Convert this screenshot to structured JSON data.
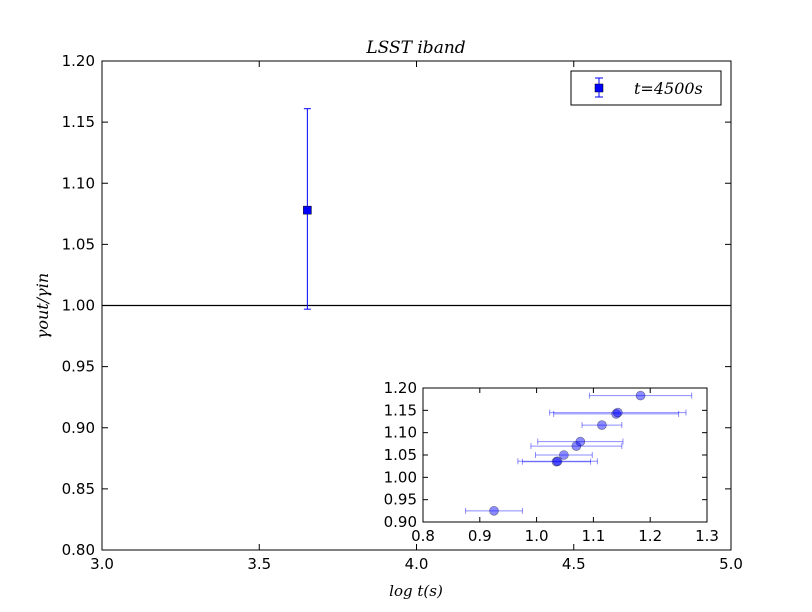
{
  "chart_data": [
    {
      "type": "scatter",
      "title": "LSST iband",
      "xlabel": "log t(s)",
      "ylabel": "γout/γin",
      "xlim": [
        3.0,
        5.0
      ],
      "ylim": [
        0.8,
        1.2
      ],
      "xticks": [
        "3.0",
        "3.5",
        "4.0",
        "4.5",
        "5.0"
      ],
      "yticks": [
        "0.80",
        "0.85",
        "0.90",
        "0.95",
        "1.00",
        "1.05",
        "1.10",
        "1.15",
        "1.20"
      ],
      "reference_line_y": 1.0,
      "grid": false,
      "legend_position": "top-right",
      "series": [
        {
          "name": "t=4500s",
          "color": "#0000ff",
          "marker": "square",
          "points": [
            {
              "x": 3.653,
              "y": 1.078,
              "yerr_low": 0.081,
              "yerr_high": 0.083
            }
          ]
        }
      ]
    },
    {
      "type": "scatter",
      "title": "",
      "xlabel": "",
      "ylabel": "",
      "xlim": [
        0.8,
        1.3
      ],
      "ylim": [
        0.9,
        1.2
      ],
      "xticks": [
        "0.8",
        "0.9",
        "1.0",
        "1.1",
        "1.2",
        "1.3"
      ],
      "yticks": [
        "0.90",
        "0.95",
        "1.00",
        "1.05",
        "1.10",
        "1.15",
        "1.20"
      ],
      "grid": false,
      "series": [
        {
          "color": "#0000ff",
          "marker": "circle",
          "alpha": 0.45,
          "points": [
            {
              "x": 0.925,
              "y": 0.925,
              "xerr": 0.05
            },
            {
              "x": 1.035,
              "y": 1.035,
              "xerr": 0.06
            },
            {
              "x": 1.037,
              "y": 1.036,
              "xerr": 0.07
            },
            {
              "x": 1.048,
              "y": 1.05,
              "xerr": 0.05
            },
            {
              "x": 1.07,
              "y": 1.07,
              "xerr": 0.08
            },
            {
              "x": 1.077,
              "y": 1.08,
              "xerr": 0.075
            },
            {
              "x": 1.115,
              "y": 1.117,
              "xerr": 0.035
            },
            {
              "x": 1.14,
              "y": 1.142,
              "xerr": 0.11
            },
            {
              "x": 1.143,
              "y": 1.145,
              "xerr": 0.12
            },
            {
              "x": 1.183,
              "y": 1.183,
              "xerr": 0.09
            }
          ]
        }
      ]
    }
  ]
}
